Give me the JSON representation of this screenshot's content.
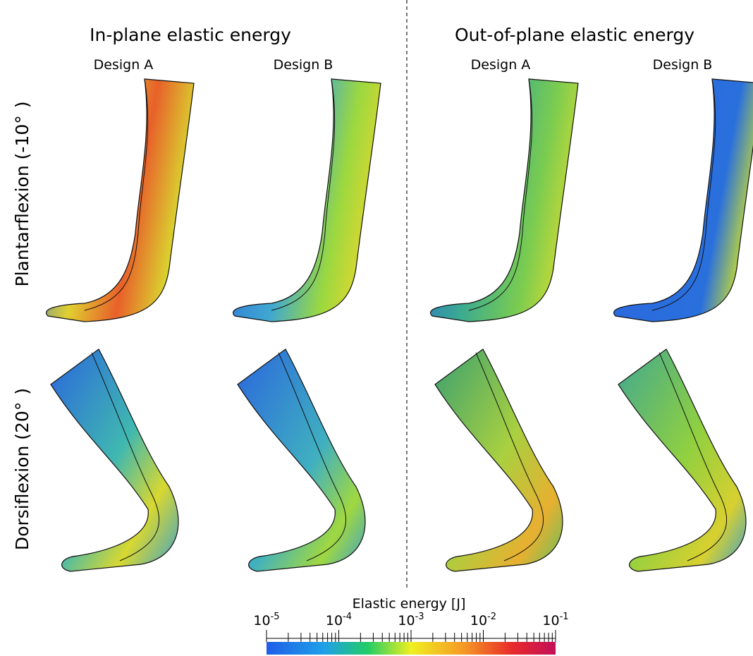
{
  "headers": {
    "left": "In-plane elastic energy",
    "right": "Out-of-plane elastic energy"
  },
  "designs": [
    "Design A",
    "Design B",
    "Design A",
    "Design B"
  ],
  "rows": [
    "Plantarflexion (-10°  )",
    "Dorsiflexion (20°  )"
  ],
  "colorbar": {
    "title": "Elastic energy [J]",
    "scale": "log",
    "lim": [
      1e-05,
      0.1
    ],
    "ticks": [
      {
        "value": 1e-05,
        "base": "10",
        "exponent": "-5"
      },
      {
        "value": 0.0001,
        "base": "10",
        "exponent": "-4"
      },
      {
        "value": 0.001,
        "base": "10",
        "exponent": "-3"
      },
      {
        "value": 0.01,
        "base": "10",
        "exponent": "-2"
      },
      {
        "value": 0.1,
        "base": "10",
        "exponent": "-1"
      }
    ],
    "minor_ticks": [
      2e-05,
      3e-05,
      4e-05,
      5e-05,
      6e-05,
      7e-05,
      8e-05,
      9e-05,
      0.0002,
      0.0003,
      0.0004,
      0.0005,
      0.0006,
      0.0007,
      0.0008,
      0.0009,
      0.002,
      0.003,
      0.004,
      0.005,
      0.006,
      0.007,
      0.008,
      0.009,
      0.02,
      0.03,
      0.04,
      0.05,
      0.06,
      0.07,
      0.08,
      0.09
    ]
  }
}
